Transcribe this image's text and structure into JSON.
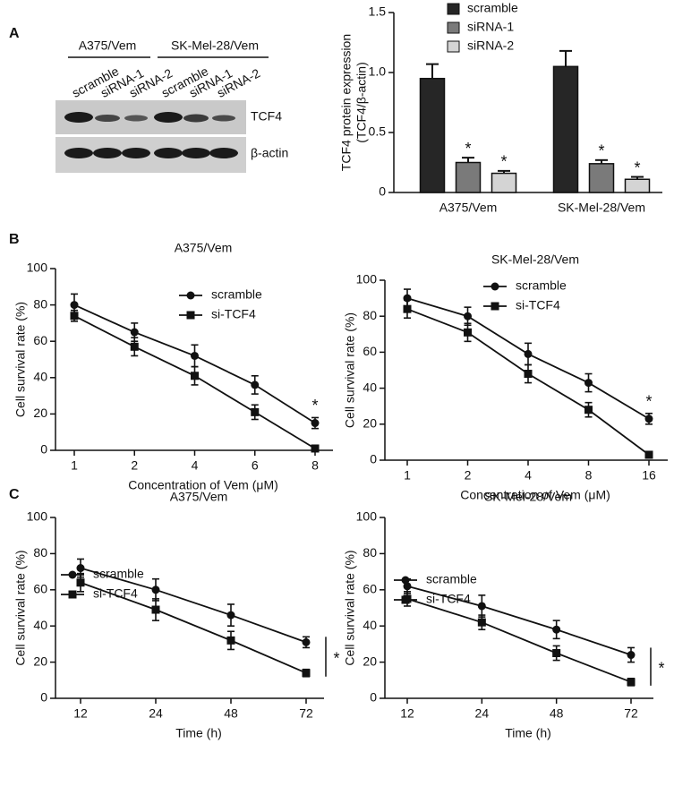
{
  "panel_labels": [
    "A",
    "B",
    "C"
  ],
  "blot": {
    "groups": [
      "A375/Vem",
      "SK-Mel-28/Vem"
    ],
    "lanes": [
      "scramble",
      "siRNA-1",
      "siRNA-2",
      "scramble",
      "siRNA-1",
      "siRNA-2"
    ],
    "proteins": [
      "TCF4",
      "β-actin"
    ]
  },
  "chart_data": [
    {
      "type": "bar",
      "ylabel": [
        "TCF4 protein expression",
        "(TCF4/β-actin)"
      ],
      "categories": [
        "A375/Vem",
        "SK-Mel-28/Vem"
      ],
      "series": [
        {
          "name": "scramble",
          "color": "#262626",
          "values": [
            0.95,
            1.05
          ],
          "errors": [
            0.12,
            0.13
          ]
        },
        {
          "name": "siRNA-1",
          "color": "#7a7a7a",
          "values": [
            0.25,
            0.24
          ],
          "errors": [
            0.04,
            0.03
          ],
          "annotations": [
            "*",
            "*"
          ]
        },
        {
          "name": "siRNA-2",
          "color": "#d4d4d4",
          "values": [
            0.16,
            0.11
          ],
          "errors": [
            0.02,
            0.02
          ],
          "annotations": [
            "*",
            "*"
          ]
        }
      ],
      "ylim": [
        0,
        1.5
      ],
      "yticks": [
        0,
        0.5,
        {
          "value": 1,
          "label": "1.0"
        },
        1.5
      ],
      "legend": "top"
    },
    {
      "type": "line",
      "title": "A375/Vem",
      "xlabel": "Concentration of Vem (μM)",
      "ylabel": "Cell survival rate (%)",
      "categories": [
        "1",
        "2",
        "4",
        "6",
        "8"
      ],
      "series": [
        {
          "name": "scramble",
          "color": "#111111",
          "marker": "circle",
          "values": [
            80,
            65,
            52,
            36,
            15
          ],
          "errors": [
            6,
            5,
            6,
            5,
            3
          ]
        },
        {
          "name": "si-TCF4",
          "color": "#111111",
          "marker": "square",
          "values": [
            74,
            57,
            41,
            21,
            1
          ],
          "errors": [
            3,
            5,
            5,
            4,
            1
          ]
        }
      ],
      "ylim": [
        0,
        100
      ],
      "yticks": [
        0,
        20,
        40,
        60,
        80,
        100
      ],
      "legend": "upper right",
      "annotation": "*",
      "annotation_style": "point"
    },
    {
      "type": "line",
      "title": "SK-Mel-28/Vem",
      "xlabel": "Concentration of Vem (μM)",
      "ylabel": "Cell survival rate (%)",
      "categories": [
        "1",
        "2",
        "4",
        "8",
        "16"
      ],
      "series": [
        {
          "name": "scramble",
          "color": "#111111",
          "marker": "circle",
          "values": [
            90,
            80,
            59,
            43,
            23
          ],
          "errors": [
            5,
            5,
            6,
            5,
            3
          ]
        },
        {
          "name": "si-TCF4",
          "color": "#111111",
          "marker": "square",
          "values": [
            84,
            71,
            48,
            28,
            3
          ],
          "errors": [
            5,
            5,
            5,
            4,
            1
          ]
        }
      ],
      "ylim": [
        0,
        100
      ],
      "yticks": [
        0,
        20,
        40,
        60,
        80,
        100
      ],
      "legend": "upper right",
      "annotation": "*",
      "annotation_style": "point"
    },
    {
      "type": "line",
      "title": "A375/Vem",
      "xlabel": "Time (h)",
      "ylabel": "Cell survival rate (%)",
      "categories": [
        "12",
        "24",
        "48",
        "72"
      ],
      "series": [
        {
          "name": "scramble",
          "color": "#111111",
          "marker": "circle",
          "values": [
            72,
            60,
            46,
            31
          ],
          "errors": [
            5,
            6,
            6,
            3
          ]
        },
        {
          "name": "si-TCF4",
          "color": "#111111",
          "marker": "square",
          "values": [
            64,
            49,
            32,
            14
          ],
          "errors": [
            5,
            6,
            5,
            2
          ]
        }
      ],
      "ylim": [
        0,
        100
      ],
      "yticks": [
        0,
        20,
        40,
        60,
        80,
        100
      ],
      "legend": "upper left",
      "annotation": "*",
      "annotation_style": "bracket"
    },
    {
      "type": "line",
      "title": "SK-Mel-28/Vem",
      "xlabel": "Time (h)",
      "ylabel": "Cell survival rate (%)",
      "categories": [
        "12",
        "24",
        "48",
        "72"
      ],
      "series": [
        {
          "name": "scramble",
          "color": "#111111",
          "marker": "circle",
          "values": [
            62,
            51,
            38,
            24
          ],
          "errors": [
            4,
            6,
            5,
            4
          ]
        },
        {
          "name": "si-TCF4",
          "color": "#111111",
          "marker": "square",
          "values": [
            55,
            42,
            25,
            9
          ],
          "errors": [
            4,
            4,
            4,
            2
          ]
        }
      ],
      "ylim": [
        0,
        100
      ],
      "yticks": [
        0,
        20,
        40,
        60,
        80,
        100
      ],
      "legend": "upper left",
      "annotation": "*",
      "annotation_style": "bracket"
    }
  ]
}
